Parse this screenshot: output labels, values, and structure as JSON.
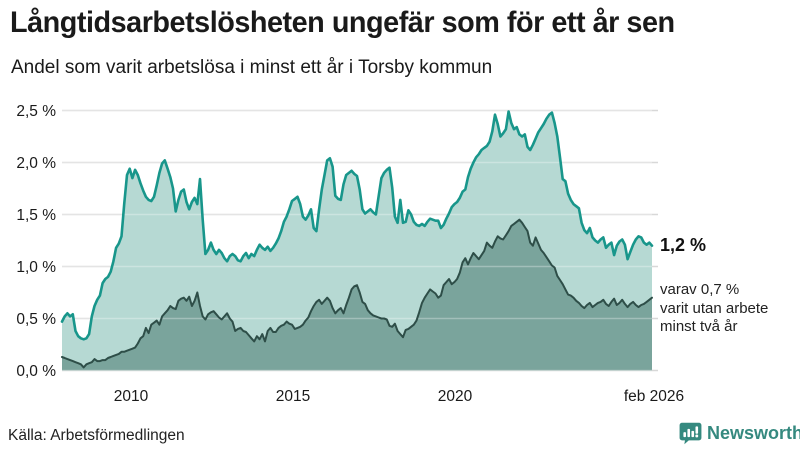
{
  "header": {
    "title": "Långtidsarbetslösheten ungefär som för ett år sen",
    "subtitle": "Andel som varit arbetslösa i minst ett år i Torsby kommun"
  },
  "annotations": {
    "latest_value": "1,2 %",
    "secondary_lines": [
      "varav 0,7 %",
      "varit utan arbete",
      "minst två år"
    ]
  },
  "footer": {
    "source": "Källa: Arbetsförmedlingen",
    "brand": "Newsworthy"
  },
  "colors": {
    "accent_teal": "#18968b",
    "light_fill": "#b6d9d3",
    "dark_line": "#2e4e48",
    "dark_fill": "#7aa49c",
    "gridline": "#d8d8d8",
    "brand_teal": "#35897f",
    "text": "#1a1a1a"
  },
  "chart_data": {
    "type": "area",
    "title": "Långtidsarbetslösheten ungefär som för ett år sen",
    "subtitle": "Andel som varit arbetslösa i minst ett år i Torsby kommun",
    "xlabel": "",
    "ylabel": "",
    "x_start_year": 2007.92,
    "x_end_year": 2026.08,
    "step_months": 1,
    "ylim": [
      0,
      2.5
    ],
    "grid": true,
    "legend": "none",
    "yticks": [
      {
        "label": "2,5 %",
        "value": 2.5
      },
      {
        "label": "2,0 %",
        "value": 2.0
      },
      {
        "label": "1,5 %",
        "value": 1.5
      },
      {
        "label": "1,0 %",
        "value": 1.0
      },
      {
        "label": "0,5 %",
        "value": 0.5
      },
      {
        "label": "0,0 %",
        "value": 0.0
      }
    ],
    "xticks": [
      {
        "label": "2010",
        "year": 2010
      },
      {
        "label": "2015",
        "year": 2015
      },
      {
        "label": "2020",
        "year": 2020
      },
      {
        "label": "feb 2026",
        "year": 2026.08
      }
    ],
    "latest": {
      "one_year_pct": 1.2,
      "two_year_pct": 0.7,
      "month": "feb 2026"
    },
    "series": [
      {
        "name": "Arbetslösa minst ett år",
        "line_color": "#18968b",
        "fill_color": "#b6d9d3",
        "line_width": 2.6,
        "values": [
          0.47,
          0.52,
          0.55,
          0.52,
          0.54,
          0.38,
          0.33,
          0.31,
          0.3,
          0.31,
          0.35,
          0.52,
          0.62,
          0.68,
          0.72,
          0.84,
          0.88,
          0.9,
          0.95,
          1.05,
          1.18,
          1.22,
          1.29,
          1.6,
          1.88,
          1.94,
          1.85,
          1.93,
          1.88,
          1.8,
          1.73,
          1.67,
          1.64,
          1.63,
          1.67,
          1.78,
          1.9,
          1.99,
          2.02,
          1.94,
          1.86,
          1.75,
          1.53,
          1.64,
          1.72,
          1.74,
          1.62,
          1.55,
          1.62,
          1.66,
          1.6,
          1.84,
          1.45,
          1.12,
          1.16,
          1.23,
          1.16,
          1.12,
          1.16,
          1.13,
          1.08,
          1.05,
          1.1,
          1.12,
          1.1,
          1.06,
          1.05,
          1.1,
          1.13,
          1.08,
          1.12,
          1.1,
          1.16,
          1.21,
          1.18,
          1.16,
          1.19,
          1.15,
          1.18,
          1.22,
          1.27,
          1.34,
          1.43,
          1.48,
          1.55,
          1.63,
          1.65,
          1.67,
          1.6,
          1.48,
          1.45,
          1.49,
          1.55,
          1.37,
          1.34,
          1.55,
          1.74,
          1.88,
          2.02,
          2.04,
          1.96,
          1.68,
          1.65,
          1.64,
          1.79,
          1.88,
          1.9,
          1.92,
          1.89,
          1.87,
          1.74,
          1.55,
          1.51,
          1.53,
          1.55,
          1.52,
          1.5,
          1.68,
          1.85,
          1.9,
          1.93,
          1.95,
          1.76,
          1.48,
          1.42,
          1.64,
          1.42,
          1.43,
          1.54,
          1.5,
          1.43,
          1.4,
          1.39,
          1.41,
          1.39,
          1.43,
          1.46,
          1.45,
          1.44,
          1.44,
          1.37,
          1.4,
          1.46,
          1.51,
          1.57,
          1.6,
          1.62,
          1.66,
          1.72,
          1.74,
          1.86,
          1.94,
          2.0,
          2.05,
          2.08,
          2.12,
          2.14,
          2.16,
          2.2,
          2.3,
          2.46,
          2.37,
          2.25,
          2.28,
          2.32,
          2.49,
          2.38,
          2.32,
          2.34,
          2.27,
          2.25,
          2.27,
          2.15,
          2.12,
          2.17,
          2.23,
          2.29,
          2.33,
          2.37,
          2.42,
          2.46,
          2.48,
          2.38,
          2.25,
          2.05,
          1.84,
          1.82,
          1.7,
          1.64,
          1.6,
          1.58,
          1.56,
          1.42,
          1.35,
          1.32,
          1.37,
          1.28,
          1.25,
          1.23,
          1.26,
          1.28,
          1.18,
          1.21,
          1.23,
          1.11,
          1.2,
          1.24,
          1.26,
          1.21,
          1.07,
          1.14,
          1.21,
          1.26,
          1.29,
          1.28,
          1.23,
          1.21,
          1.23,
          1.2
        ]
      },
      {
        "name": "Varav arbetslösa minst två år",
        "line_color": "#2e4e48",
        "fill_color": "#7aa49c",
        "line_width": 2.0,
        "values": [
          0.13,
          0.12,
          0.11,
          0.1,
          0.09,
          0.08,
          0.07,
          0.06,
          0.03,
          0.06,
          0.07,
          0.08,
          0.11,
          0.09,
          0.09,
          0.1,
          0.1,
          0.12,
          0.13,
          0.14,
          0.15,
          0.16,
          0.18,
          0.18,
          0.19,
          0.2,
          0.21,
          0.22,
          0.26,
          0.31,
          0.33,
          0.41,
          0.36,
          0.44,
          0.46,
          0.48,
          0.44,
          0.52,
          0.55,
          0.58,
          0.62,
          0.6,
          0.59,
          0.67,
          0.69,
          0.7,
          0.67,
          0.71,
          0.62,
          0.67,
          0.75,
          0.62,
          0.52,
          0.49,
          0.54,
          0.56,
          0.57,
          0.54,
          0.51,
          0.49,
          0.52,
          0.55,
          0.5,
          0.47,
          0.38,
          0.4,
          0.41,
          0.38,
          0.37,
          0.34,
          0.31,
          0.28,
          0.33,
          0.3,
          0.35,
          0.28,
          0.38,
          0.41,
          0.37,
          0.37,
          0.41,
          0.43,
          0.44,
          0.47,
          0.45,
          0.44,
          0.4,
          0.41,
          0.42,
          0.44,
          0.48,
          0.51,
          0.57,
          0.62,
          0.66,
          0.68,
          0.64,
          0.67,
          0.7,
          0.67,
          0.6,
          0.55,
          0.58,
          0.6,
          0.55,
          0.63,
          0.7,
          0.78,
          0.81,
          0.82,
          0.75,
          0.66,
          0.64,
          0.58,
          0.55,
          0.53,
          0.52,
          0.51,
          0.5,
          0.5,
          0.49,
          0.43,
          0.42,
          0.45,
          0.38,
          0.35,
          0.32,
          0.39,
          0.4,
          0.42,
          0.44,
          0.48,
          0.56,
          0.65,
          0.7,
          0.74,
          0.78,
          0.76,
          0.74,
          0.7,
          0.72,
          0.82,
          0.85,
          0.88,
          0.83,
          0.85,
          0.88,
          0.94,
          1.04,
          1.08,
          1.02,
          1.08,
          1.13,
          1.1,
          1.07,
          1.11,
          1.15,
          1.23,
          1.2,
          1.18,
          1.24,
          1.29,
          1.27,
          1.26,
          1.3,
          1.34,
          1.39,
          1.41,
          1.43,
          1.45,
          1.42,
          1.38,
          1.34,
          1.23,
          1.2,
          1.28,
          1.22,
          1.16,
          1.13,
          1.09,
          1.05,
          1.01,
          0.99,
          0.91,
          0.87,
          0.83,
          0.78,
          0.73,
          0.72,
          0.7,
          0.67,
          0.65,
          0.62,
          0.6,
          0.63,
          0.65,
          0.61,
          0.63,
          0.65,
          0.66,
          0.68,
          0.64,
          0.62,
          0.66,
          0.69,
          0.63,
          0.65,
          0.68,
          0.64,
          0.61,
          0.64,
          0.66,
          0.63,
          0.61,
          0.63,
          0.64,
          0.66,
          0.68,
          0.7
        ]
      }
    ]
  }
}
